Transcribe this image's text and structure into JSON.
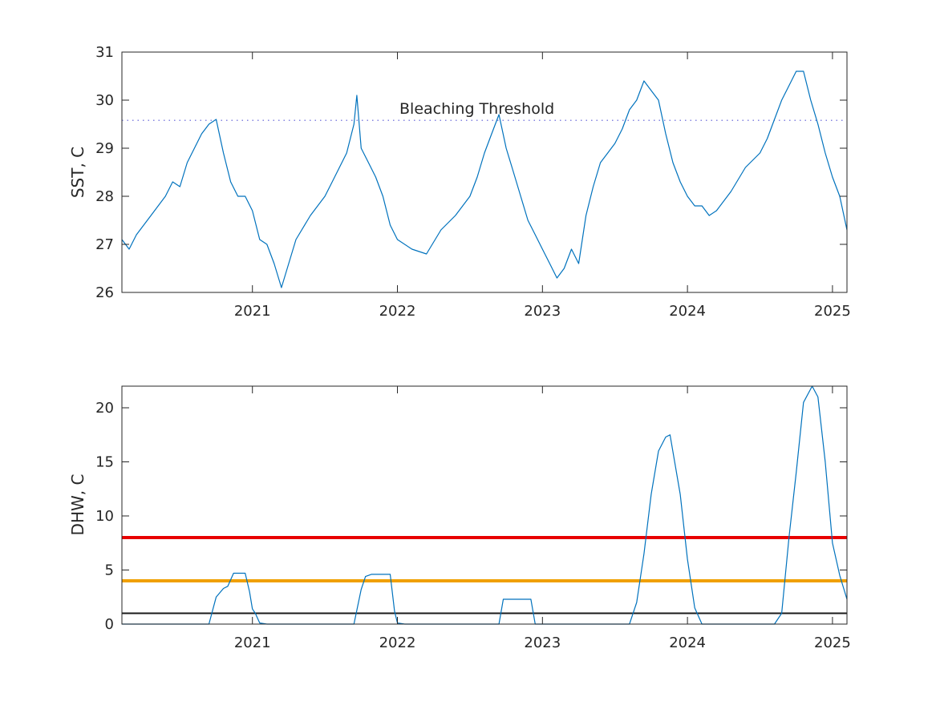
{
  "chart_data": [
    {
      "type": "line",
      "ylabel": "SST, C",
      "xlim": [
        2020.1,
        2025.1
      ],
      "ylim": [
        26,
        31
      ],
      "x_ticks": [
        2021,
        2022,
        2023,
        2024,
        2025
      ],
      "x_tick_labels": [
        "2021",
        "2022",
        "2023",
        "2024",
        "2025"
      ],
      "y_ticks": [
        26,
        27,
        28,
        29,
        30,
        31
      ],
      "y_tick_labels": [
        "26",
        "27",
        "28",
        "29",
        "30",
        "31"
      ],
      "annotation": "Bleaching Threshold",
      "threshold_y": 29.58,
      "threshold_color": "#5b5bd6",
      "series": [
        {
          "color": "#0072bd",
          "x": [
            2020.1,
            2020.15,
            2020.2,
            2020.3,
            2020.4,
            2020.45,
            2020.5,
            2020.55,
            2020.6,
            2020.65,
            2020.7,
            2020.75,
            2020.8,
            2020.85,
            2020.9,
            2020.95,
            2021.0,
            2021.05,
            2021.1,
            2021.15,
            2021.2,
            2021.3,
            2021.4,
            2021.5,
            2021.55,
            2021.6,
            2021.65,
            2021.7,
            2021.72,
            2021.75,
            2021.8,
            2021.85,
            2021.9,
            2021.95,
            2022.0,
            2022.1,
            2022.2,
            2022.3,
            2022.4,
            2022.5,
            2022.55,
            2022.6,
            2022.65,
            2022.7,
            2022.75,
            2022.8,
            2022.85,
            2022.9,
            2022.95,
            2023.0,
            2023.05,
            2023.1,
            2023.15,
            2023.2,
            2023.25,
            2023.3,
            2023.35,
            2023.4,
            2023.45,
            2023.5,
            2023.55,
            2023.6,
            2023.65,
            2023.7,
            2023.75,
            2023.8,
            2023.85,
            2023.9,
            2023.95,
            2024.0,
            2024.05,
            2024.1,
            2024.15,
            2024.2,
            2024.3,
            2024.4,
            2024.5,
            2024.55,
            2024.6,
            2024.65,
            2024.7,
            2024.75,
            2024.8,
            2024.85,
            2024.9,
            2024.95,
            2025.0,
            2025.05,
            2025.1
          ],
          "y": [
            27.1,
            26.9,
            27.2,
            27.6,
            28.0,
            28.3,
            28.2,
            28.7,
            29.0,
            29.3,
            29.5,
            29.6,
            28.9,
            28.3,
            28.0,
            28.0,
            27.7,
            27.1,
            27.0,
            26.6,
            26.1,
            27.1,
            27.6,
            28.0,
            28.3,
            28.6,
            28.9,
            29.5,
            30.1,
            29.0,
            28.7,
            28.4,
            28.0,
            27.4,
            27.1,
            26.9,
            26.8,
            27.3,
            27.6,
            28.0,
            28.4,
            28.9,
            29.3,
            29.7,
            29.0,
            28.5,
            28.0,
            27.5,
            27.2,
            26.9,
            26.6,
            26.3,
            26.5,
            26.9,
            26.6,
            27.6,
            28.2,
            28.7,
            28.9,
            29.1,
            29.4,
            29.8,
            30.0,
            30.4,
            30.2,
            30.0,
            29.3,
            28.7,
            28.3,
            28.0,
            27.8,
            27.8,
            27.6,
            27.7,
            28.1,
            28.6,
            28.9,
            29.2,
            29.6,
            30.0,
            30.3,
            30.6,
            30.6,
            30.0,
            29.5,
            28.9,
            28.4,
            28.0,
            27.3
          ]
        }
      ]
    },
    {
      "type": "line",
      "ylabel": "DHW, C",
      "xlim": [
        2020.1,
        2025.1
      ],
      "ylim": [
        0,
        22
      ],
      "x_ticks": [
        2021,
        2022,
        2023,
        2024,
        2025
      ],
      "x_tick_labels": [
        "2021",
        "2022",
        "2023",
        "2024",
        "2025"
      ],
      "y_ticks": [
        0,
        5,
        10,
        15,
        20
      ],
      "y_tick_labels": [
        "0",
        "5",
        "10",
        "15",
        "20"
      ],
      "reference_lines": [
        {
          "y": 8,
          "color": "#e80000"
        },
        {
          "y": 4,
          "color": "#f0a000"
        },
        {
          "y": 1,
          "color": "#1a1a1a"
        }
      ],
      "series": [
        {
          "color": "#0072bd",
          "x": [
            2020.1,
            2020.7,
            2020.75,
            2020.8,
            2020.83,
            2020.87,
            2020.95,
            2020.98,
            2021.0,
            2021.02,
            2021.05,
            2021.1,
            2021.7,
            2021.75,
            2021.78,
            2021.82,
            2021.95,
            2021.98,
            2022.0,
            2022.05,
            2022.7,
            2022.73,
            2022.92,
            2022.95,
            2023.6,
            2023.65,
            2023.7,
            2023.75,
            2023.8,
            2023.85,
            2023.88,
            2023.95,
            2024.0,
            2024.05,
            2024.1,
            2024.6,
            2024.65,
            2024.7,
            2024.75,
            2024.8,
            2024.86,
            2024.9,
            2024.95,
            2025.0,
            2025.05,
            2025.1
          ],
          "y": [
            0,
            0,
            2.5,
            3.3,
            3.5,
            4.7,
            4.7,
            3.0,
            1.4,
            1.0,
            0.1,
            0,
            0,
            3.2,
            4.4,
            4.6,
            4.6,
            1.2,
            0.1,
            0,
            0,
            2.3,
            2.3,
            0,
            0,
            2.0,
            6.5,
            12.0,
            16.0,
            17.3,
            17.5,
            12.0,
            6.0,
            1.5,
            0,
            0,
            1.0,
            8.0,
            14.0,
            20.5,
            22.0,
            21.0,
            15.0,
            7.5,
            4.5,
            2.3
          ]
        }
      ]
    }
  ]
}
